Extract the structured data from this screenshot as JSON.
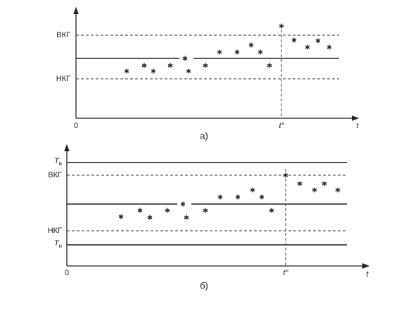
{
  "panel_a": {
    "upper_label": "ВКГ",
    "lower_label": "НКГ",
    "origin": "0",
    "t_mark": "t″",
    "axis_label": "t",
    "caption": "а)"
  },
  "panel_b": {
    "top_symbol": "T",
    "top_subscript": "в",
    "upper_label": "ВКГ",
    "lower_label": "НКГ",
    "bottom_symbol": "T",
    "bottom_subscript": "н",
    "origin": "0",
    "t_mark": "t″",
    "axis_label": "t",
    "caption": "б)"
  }
}
